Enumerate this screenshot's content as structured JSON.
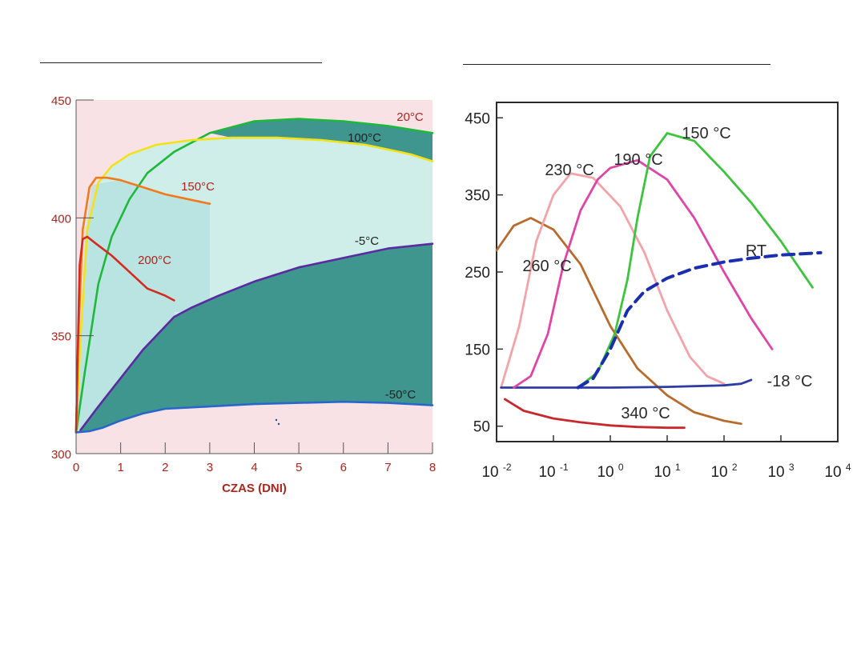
{
  "colors": {
    "page_bg": "#ffffff",
    "left_bg_pink": "#f8e2e6",
    "left_teal_light": "#cfeeea",
    "left_teal_mid": "#a9ddd8",
    "left_teal_dark": "#3e968f",
    "left_tick_text": "#b0241b",
    "right_frame": "#2b2b2b"
  },
  "chart_data": [
    {
      "type": "line",
      "xlabel": "CZAS (DNI)",
      "ylabel": "",
      "xlim": [
        0,
        8
      ],
      "ylim": [
        300,
        450
      ],
      "x_ticks": [
        "0",
        "1",
        "2",
        "3",
        "4",
        "5",
        "6",
        "7",
        "8"
      ],
      "y_ticks": [
        "300",
        "350",
        "400",
        "450"
      ],
      "grid": false,
      "series": [
        {
          "name": "20°C",
          "color": "#1fb83a",
          "x": [
            0,
            0.2,
            0.5,
            0.8,
            1.2,
            1.6,
            2.2,
            3,
            4,
            5,
            6,
            7,
            8
          ],
          "y": [
            309,
            335,
            372,
            392,
            408,
            419,
            428,
            436,
            441,
            442,
            441,
            439,
            436
          ]
        },
        {
          "name": "100°C",
          "color": "#f2e21a",
          "x": [
            0,
            0.1,
            0.25,
            0.5,
            0.8,
            1.2,
            1.8,
            2.6,
            3.5,
            4.5,
            5.5,
            6.5,
            7.5,
            8
          ],
          "y": [
            309,
            350,
            395,
            415,
            422,
            427,
            431,
            433,
            434,
            434,
            433,
            431,
            427,
            424
          ]
        },
        {
          "name": "150°C",
          "color": "#f07a1c",
          "x": [
            0,
            0.05,
            0.15,
            0.3,
            0.45,
            0.7,
            1.0,
            1.5,
            2.0,
            2.5,
            3.0
          ],
          "y": [
            309,
            350,
            395,
            413,
            417,
            417,
            416,
            413,
            410,
            408,
            406
          ]
        },
        {
          "name": "200°C",
          "color": "#d42a1f",
          "x": [
            0,
            0.04,
            0.08,
            0.15,
            0.25,
            0.45,
            0.8,
            1.2,
            1.6,
            2.0,
            2.2
          ],
          "y": [
            309,
            345,
            380,
            391,
            392,
            389,
            384,
            377,
            370,
            367,
            365
          ]
        },
        {
          "name": "-5°C",
          "color": "#5a2aa0",
          "x": [
            0.1,
            0.5,
            1.0,
            1.5,
            2.0,
            2.2,
            2.6,
            3.2,
            4.0,
            5.0,
            6.0,
            7.0,
            8.0
          ],
          "y": [
            310,
            320,
            332,
            344,
            354,
            358,
            362,
            367,
            373,
            379,
            383,
            387,
            389
          ]
        },
        {
          "name": "-50°C",
          "color": "#2a66c9",
          "x": [
            0,
            0.3,
            0.6,
            1.0,
            1.5,
            2.0,
            3.0,
            4.0,
            5.0,
            6.0,
            7.0,
            8.0
          ],
          "y": [
            309,
            309.5,
            311,
            314,
            317,
            319,
            320,
            321,
            321.5,
            322,
            321.5,
            320.5
          ]
        }
      ]
    },
    {
      "type": "line",
      "x_scale": "log10",
      "xlim": [
        0.01,
        10000
      ],
      "ylim": [
        30,
        470
      ],
      "x_ticks": [
        "10 -2",
        "10 -1",
        "10 0",
        "10 1",
        "10 2",
        "10 3",
        "10 4"
      ],
      "y_ticks": [
        "50",
        "150",
        "250",
        "350",
        "450"
      ],
      "grid": false,
      "series": [
        {
          "name": "150 °C",
          "color": "#3cc43c",
          "style": "solid",
          "x": [
            0.27,
            0.6,
            1.2,
            2,
            3,
            5,
            10,
            30,
            100,
            300,
            1000,
            3600
          ],
          "y": [
            100,
            120,
            170,
            240,
            320,
            400,
            430,
            420,
            380,
            340,
            290,
            230
          ]
        },
        {
          "name": "190 °C",
          "color": "#e044a6",
          "style": "solid",
          "x": [
            0.02,
            0.04,
            0.08,
            0.15,
            0.3,
            0.6,
            1,
            3,
            10,
            30,
            100,
            300,
            700
          ],
          "y": [
            100,
            115,
            170,
            260,
            330,
            370,
            385,
            395,
            370,
            320,
            250,
            190,
            150
          ]
        },
        {
          "name": "230 °C",
          "color": "#f4a3a8",
          "style": "solid",
          "x": [
            0.012,
            0.025,
            0.05,
            0.1,
            0.2,
            0.5,
            1.5,
            4,
            10,
            25,
            50,
            100
          ],
          "y": [
            100,
            180,
            290,
            350,
            378,
            372,
            335,
            275,
            200,
            140,
            115,
            105
          ]
        },
        {
          "name": "260 °C",
          "color": "#b86b2c",
          "style": "solid",
          "x": [
            0.01,
            0.02,
            0.04,
            0.1,
            0.3,
            1,
            3,
            10,
            30,
            100,
            200
          ],
          "y": [
            278,
            310,
            320,
            305,
            260,
            180,
            125,
            90,
            68,
            57,
            53
          ]
        },
        {
          "name": "RT",
          "color": "#1a2eb0",
          "style": "dashed",
          "x": [
            0.27,
            0.5,
            1,
            2,
            4,
            10,
            30,
            100,
            300,
            1000,
            5000
          ],
          "y": [
            100,
            112,
            150,
            200,
            225,
            242,
            255,
            263,
            268,
            272,
            275
          ]
        },
        {
          "name": "-18 °C",
          "color": "#2e3ca2",
          "style": "solid",
          "x": [
            0.012,
            0.1,
            1,
            10,
            100,
            200,
            300
          ],
          "y": [
            100,
            100,
            100,
            101,
            103,
            105,
            110
          ]
        },
        {
          "name": "340 °C",
          "color": "#c8282c",
          "style": "solid",
          "x": [
            0.014,
            0.03,
            0.1,
            0.3,
            1,
            3,
            10,
            20
          ],
          "y": [
            85,
            70,
            60,
            55,
            51,
            49,
            48,
            48
          ]
        }
      ]
    }
  ]
}
